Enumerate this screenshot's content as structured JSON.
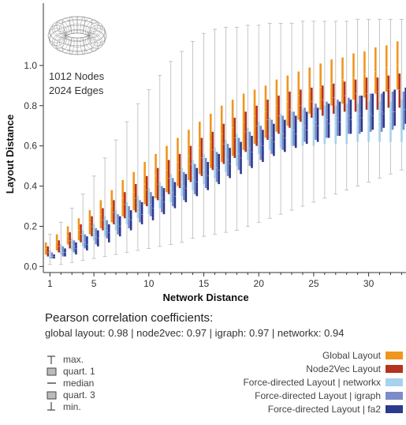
{
  "chart_data": {
    "type": "box",
    "xlabel": "Network Distance",
    "ylabel": "Layout Distance",
    "xlim": [
      0.4,
      33.4
    ],
    "ylim": [
      -0.03,
      1.31
    ],
    "xticks": [
      1,
      5,
      10,
      15,
      20,
      25,
      30
    ],
    "yticks": [
      0.0,
      0.2,
      0.4,
      0.6,
      0.8,
      1.0
    ],
    "ytick_labels": [
      "0.0",
      "0.2",
      "0.4",
      "0.6",
      "0.8",
      "1.0"
    ],
    "grid": false,
    "legend_position": "bottom-right",
    "annotation": {
      "line1": "1012 Nodes",
      "line2": "2024 Edges",
      "icon": "torus-mesh-icon"
    },
    "series": [
      {
        "name": "Global Layout",
        "color": "#f0961e",
        "q1": [
          0.06,
          0.08,
          0.11,
          0.13,
          0.16,
          0.19,
          0.22,
          0.25,
          0.28,
          0.31,
          0.34,
          0.37,
          0.4,
          0.43,
          0.46,
          0.49,
          0.52,
          0.55,
          0.58,
          0.61,
          0.64,
          0.67,
          0.7,
          0.73,
          0.76,
          0.78,
          0.8,
          0.81,
          0.83,
          0.84,
          0.86,
          0.87,
          0.88
        ],
        "q3": [
          0.12,
          0.16,
          0.2,
          0.24,
          0.28,
          0.33,
          0.38,
          0.43,
          0.47,
          0.52,
          0.56,
          0.6,
          0.64,
          0.68,
          0.72,
          0.76,
          0.8,
          0.83,
          0.86,
          0.88,
          0.9,
          0.93,
          0.95,
          0.97,
          0.99,
          1.01,
          1.03,
          1.04,
          1.06,
          1.07,
          1.09,
          1.1,
          1.12
        ],
        "median": [
          0.09,
          0.12,
          0.15,
          0.18,
          0.22,
          0.26,
          0.3,
          0.34,
          0.37,
          0.41,
          0.45,
          0.48,
          0.52,
          0.55,
          0.59,
          0.62,
          0.66,
          0.69,
          0.72,
          0.75,
          0.77,
          0.8,
          0.82,
          0.85,
          0.87,
          0.89,
          0.91,
          0.93,
          0.94,
          0.96,
          0.97,
          0.99,
          1.0
        ]
      },
      {
        "name": "Node2Vec Layout",
        "color": "#b5331f",
        "q1": [
          0.05,
          0.07,
          0.09,
          0.12,
          0.15,
          0.18,
          0.21,
          0.24,
          0.27,
          0.3,
          0.33,
          0.36,
          0.39,
          0.42,
          0.45,
          0.48,
          0.51,
          0.54,
          0.57,
          0.6,
          0.63,
          0.66,
          0.69,
          0.72,
          0.74,
          0.75,
          0.76,
          0.77,
          0.77,
          0.78,
          0.78,
          0.79,
          0.79
        ],
        "q3": [
          0.1,
          0.13,
          0.17,
          0.21,
          0.25,
          0.29,
          0.33,
          0.37,
          0.41,
          0.45,
          0.49,
          0.53,
          0.56,
          0.6,
          0.64,
          0.67,
          0.71,
          0.74,
          0.77,
          0.8,
          0.83,
          0.85,
          0.87,
          0.88,
          0.89,
          0.9,
          0.91,
          0.92,
          0.93,
          0.94,
          0.94,
          0.95,
          0.96
        ],
        "median": [
          0.07,
          0.1,
          0.13,
          0.16,
          0.2,
          0.23,
          0.27,
          0.31,
          0.34,
          0.38,
          0.41,
          0.44,
          0.48,
          0.51,
          0.54,
          0.58,
          0.61,
          0.64,
          0.67,
          0.7,
          0.73,
          0.75,
          0.78,
          0.8,
          0.82,
          0.83,
          0.84,
          0.85,
          0.86,
          0.86,
          0.87,
          0.88,
          0.88
        ]
      },
      {
        "name": "Force-directed Layout | networkx",
        "color": "#a6d2ec",
        "q1": [
          0.04,
          0.06,
          0.08,
          0.1,
          0.13,
          0.15,
          0.18,
          0.21,
          0.24,
          0.26,
          0.29,
          0.32,
          0.35,
          0.38,
          0.41,
          0.44,
          0.47,
          0.5,
          0.53,
          0.56,
          0.58,
          0.59,
          0.6,
          0.6,
          0.6,
          0.61,
          0.61,
          0.61,
          0.62,
          0.62,
          0.62,
          0.62,
          0.62
        ],
        "q3": [
          0.08,
          0.11,
          0.14,
          0.18,
          0.21,
          0.25,
          0.28,
          0.32,
          0.35,
          0.39,
          0.42,
          0.46,
          0.49,
          0.53,
          0.56,
          0.59,
          0.63,
          0.66,
          0.69,
          0.72,
          0.74,
          0.76,
          0.77,
          0.78,
          0.79,
          0.8,
          0.8,
          0.81,
          0.81,
          0.82,
          0.82,
          0.82,
          0.83
        ],
        "median": [
          0.06,
          0.08,
          0.11,
          0.14,
          0.17,
          0.2,
          0.23,
          0.26,
          0.29,
          0.32,
          0.35,
          0.39,
          0.42,
          0.45,
          0.48,
          0.51,
          0.54,
          0.57,
          0.6,
          0.63,
          0.66,
          0.67,
          0.68,
          0.69,
          0.7,
          0.7,
          0.7,
          0.71,
          0.71,
          0.71,
          0.72,
          0.72,
          0.72
        ]
      },
      {
        "name": "Force-directed Layout | igraph",
        "color": "#7b8cc8",
        "q1": [
          0.04,
          0.05,
          0.07,
          0.09,
          0.11,
          0.14,
          0.16,
          0.19,
          0.22,
          0.25,
          0.27,
          0.3,
          0.33,
          0.36,
          0.39,
          0.42,
          0.45,
          0.48,
          0.5,
          0.53,
          0.56,
          0.58,
          0.6,
          0.62,
          0.63,
          0.64,
          0.65,
          0.66,
          0.66,
          0.67,
          0.67,
          0.68,
          0.68
        ],
        "q3": [
          0.07,
          0.1,
          0.13,
          0.16,
          0.19,
          0.23,
          0.26,
          0.3,
          0.33,
          0.37,
          0.4,
          0.44,
          0.47,
          0.51,
          0.54,
          0.57,
          0.61,
          0.64,
          0.67,
          0.7,
          0.73,
          0.75,
          0.77,
          0.79,
          0.81,
          0.82,
          0.83,
          0.84,
          0.85,
          0.86,
          0.86,
          0.87,
          0.87
        ],
        "median": [
          0.05,
          0.07,
          0.1,
          0.12,
          0.15,
          0.18,
          0.21,
          0.24,
          0.27,
          0.31,
          0.34,
          0.37,
          0.4,
          0.43,
          0.46,
          0.49,
          0.53,
          0.56,
          0.59,
          0.61,
          0.64,
          0.66,
          0.68,
          0.7,
          0.72,
          0.73,
          0.74,
          0.75,
          0.76,
          0.76,
          0.77,
          0.77,
          0.78
        ]
      },
      {
        "name": "Force-directed Layout | fa2",
        "color": "#2b3a8f",
        "q1": [
          0.04,
          0.05,
          0.06,
          0.08,
          0.1,
          0.12,
          0.15,
          0.18,
          0.21,
          0.23,
          0.26,
          0.29,
          0.32,
          0.35,
          0.38,
          0.41,
          0.44,
          0.46,
          0.49,
          0.52,
          0.55,
          0.57,
          0.59,
          0.61,
          0.62,
          0.64,
          0.65,
          0.66,
          0.67,
          0.68,
          0.69,
          0.7,
          0.71
        ],
        "q3": [
          0.06,
          0.09,
          0.12,
          0.15,
          0.18,
          0.21,
          0.25,
          0.28,
          0.32,
          0.35,
          0.39,
          0.42,
          0.46,
          0.49,
          0.52,
          0.56,
          0.59,
          0.62,
          0.65,
          0.68,
          0.71,
          0.73,
          0.75,
          0.77,
          0.79,
          0.81,
          0.82,
          0.83,
          0.85,
          0.86,
          0.87,
          0.88,
          0.89
        ],
        "median": [
          0.05,
          0.07,
          0.09,
          0.11,
          0.14,
          0.17,
          0.2,
          0.23,
          0.26,
          0.29,
          0.32,
          0.35,
          0.39,
          0.42,
          0.45,
          0.48,
          0.51,
          0.54,
          0.57,
          0.6,
          0.62,
          0.64,
          0.66,
          0.68,
          0.7,
          0.71,
          0.72,
          0.73,
          0.74,
          0.75,
          0.76,
          0.77,
          0.78
        ]
      }
    ],
    "whisker_low": [
      0.01,
      0.01,
      0.02,
      0.03,
      0.04,
      0.05,
      0.06,
      0.07,
      0.08,
      0.09,
      0.1,
      0.11,
      0.12,
      0.14,
      0.15,
      0.16,
      0.17,
      0.18,
      0.2,
      0.22,
      0.24,
      0.26,
      0.28,
      0.3,
      0.32,
      0.34,
      0.36,
      0.38,
      0.4,
      0.42,
      0.44,
      0.46,
      0.48
    ],
    "whisker_high": [
      0.16,
      0.22,
      0.29,
      0.36,
      0.45,
      0.54,
      0.63,
      0.72,
      0.81,
      0.88,
      0.95,
      1.02,
      1.07,
      1.12,
      1.16,
      1.18,
      1.19,
      1.19,
      1.2,
      1.2,
      1.21,
      1.21,
      1.21,
      1.22,
      1.22,
      1.22,
      1.22,
      1.22,
      1.23,
      1.23,
      1.23,
      1.23,
      1.23
    ]
  },
  "pearson": {
    "title": "Pearson correlation coefficients:",
    "values": "global layout: 0.98 | node2vec:  0.97 | igraph: 0.97 | networkx: 0.94"
  },
  "stats_legend": [
    {
      "symbol": "max",
      "label": "max."
    },
    {
      "symbol": "q1",
      "label": "quart. 1"
    },
    {
      "symbol": "median",
      "label": "median"
    },
    {
      "symbol": "q3",
      "label": "quart. 3"
    },
    {
      "symbol": "min",
      "label": "min."
    }
  ]
}
